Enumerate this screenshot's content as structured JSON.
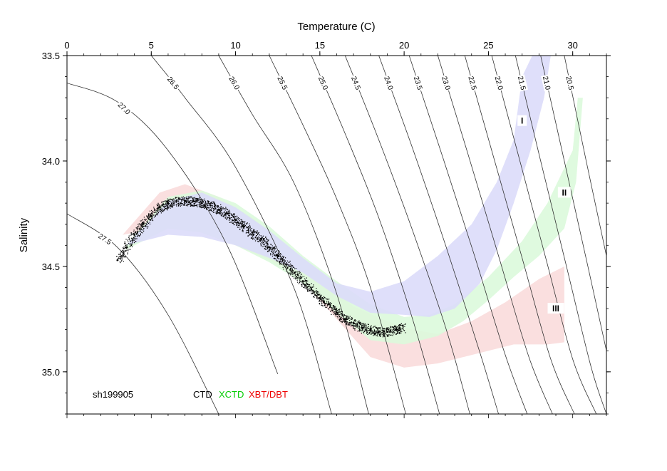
{
  "chart_data": {
    "type": "scatter",
    "xlabel": "Temperature (C)",
    "ylabel": "Salinity",
    "xlim": [
      0,
      32
    ],
    "ylim": [
      33.5,
      35.2
    ],
    "y_inverted": true,
    "x_axis_position": "top",
    "x_ticks": [
      0,
      5,
      10,
      15,
      20,
      25,
      30
    ],
    "y_ticks": [
      33.5,
      34.0,
      34.5,
      35.0
    ],
    "y_tick_labels": [
      "33.5",
      "34.0",
      "34.5",
      "35.0"
    ],
    "grid": false,
    "cruise_id": "sh199905",
    "legend": [
      {
        "label": "CTD",
        "color": "#000000"
      },
      {
        "label": "XCTD",
        "color": "#00cc00"
      },
      {
        "label": "XBT/DBT",
        "color": "#ee0000"
      }
    ],
    "legend_position": "bottom-left",
    "isopycnals": [
      {
        "label": "27.5",
        "T": [
          0,
          3,
          6,
          9
        ],
        "S": [
          34.25,
          34.41,
          34.73,
          35.2
        ]
      },
      {
        "label": "27.0",
        "T": [
          0,
          3,
          6,
          9.5,
          12.5
        ],
        "S": [
          33.63,
          33.72,
          33.95,
          34.4,
          35.01
        ]
      },
      {
        "label": "26.5",
        "T": [
          5,
          7,
          10,
          13.5,
          15.7
        ],
        "S": [
          33.5,
          33.7,
          34.03,
          34.61,
          35.2
        ]
      },
      {
        "label": "26.0",
        "T": [
          9,
          11,
          13.5,
          16,
          17.9
        ],
        "S": [
          33.5,
          33.78,
          34.11,
          34.63,
          35.2
        ]
      },
      {
        "label": "25.5",
        "T": [
          12,
          14,
          16,
          18,
          20.1
        ],
        "S": [
          33.5,
          33.83,
          34.18,
          34.6,
          35.2
        ]
      },
      {
        "label": "25.0",
        "T": [
          14.5,
          16.5,
          18.5,
          20.5,
          22.1
        ],
        "S": [
          33.5,
          33.87,
          34.27,
          34.75,
          35.2
        ]
      },
      {
        "label": "24.5",
        "T": [
          16.5,
          18.5,
          20.5,
          22.5,
          23.9
        ],
        "S": [
          33.5,
          33.9,
          34.33,
          34.8,
          35.2
        ]
      },
      {
        "label": "24.0",
        "T": [
          18.5,
          20.5,
          22.5,
          24.5,
          25.6
        ],
        "S": [
          33.5,
          33.94,
          34.41,
          34.91,
          35.2
        ]
      },
      {
        "label": "23.5",
        "T": [
          20.3,
          22.2,
          24.1,
          26,
          27.3
        ],
        "S": [
          33.5,
          33.96,
          34.43,
          34.92,
          35.2
        ]
      },
      {
        "label": "23.0",
        "T": [
          22,
          23.8,
          25.6,
          27.4,
          28.8
        ],
        "S": [
          33.5,
          33.97,
          34.45,
          34.93,
          35.2
        ]
      },
      {
        "label": "22.5",
        "T": [
          23.6,
          25.3,
          27,
          28.7,
          30.1
        ],
        "S": [
          33.5,
          33.98,
          34.46,
          34.94,
          35.2
        ]
      },
      {
        "label": "22.0",
        "T": [
          25.2,
          26.8,
          28.4,
          30,
          31.4
        ],
        "S": [
          33.5,
          33.98,
          34.46,
          34.94,
          35.2
        ]
      },
      {
        "label": "21.5",
        "T": [
          26.6,
          28.1,
          29.6,
          31.1,
          32
        ],
        "S": [
          33.5,
          34.0,
          34.49,
          34.98,
          35.2
        ]
      },
      {
        "label": "21.0",
        "T": [
          28.1,
          29.5,
          30.9,
          32
        ],
        "S": [
          33.5,
          34.0,
          34.5,
          34.9
        ]
      },
      {
        "label": "20.5",
        "T": [
          29.5,
          30.8,
          32
        ],
        "S": [
          33.5,
          34.0,
          34.45
        ]
      }
    ],
    "regions": [
      {
        "label": "I",
        "color": "#dcdcfa",
        "label_T": 27,
        "label_S": 33.81,
        "upper_T": [
          3.5,
          6,
          8,
          10,
          12,
          14,
          16,
          18,
          20,
          22,
          24,
          25.5,
          26.5,
          27,
          27.6,
          28.3
        ],
        "upper_S": [
          34.4,
          34.19,
          34.15,
          34.22,
          34.33,
          34.46,
          34.58,
          34.62,
          34.57,
          34.45,
          34.3,
          34.1,
          33.9,
          33.6,
          33.5,
          33.5
        ],
        "lower_T": [
          28.7,
          28.3,
          27.5,
          26.5,
          25.5,
          24.5,
          23,
          21.5,
          20,
          18,
          16,
          14,
          12,
          10,
          8,
          6,
          3.5
        ],
        "lower_S": [
          33.5,
          33.7,
          33.95,
          34.2,
          34.42,
          34.58,
          34.7,
          34.74,
          34.73,
          34.72,
          34.64,
          34.53,
          34.46,
          34.4,
          34.36,
          34.35,
          34.4
        ]
      },
      {
        "label": "II",
        "color": "#dcfadc",
        "label_T": 29.5,
        "label_S": 34.15,
        "upper_T": [
          3.5,
          6,
          8,
          10,
          12,
          14,
          16,
          18,
          20,
          21.5,
          23,
          25,
          27,
          28.5,
          30,
          30.3
        ],
        "upper_S": [
          34.4,
          34.17,
          34.14,
          34.2,
          34.31,
          34.45,
          34.57,
          34.68,
          34.74,
          34.73,
          34.68,
          34.55,
          34.38,
          34.2,
          33.95,
          33.7
        ],
        "lower_T": [
          30.6,
          30.2,
          29.5,
          28,
          26.5,
          25,
          23.5,
          22,
          20,
          18,
          16,
          14,
          12,
          10,
          8,
          6,
          3.5
        ],
        "lower_S": [
          33.7,
          34.1,
          34.32,
          34.45,
          34.55,
          34.66,
          34.76,
          34.83,
          34.87,
          34.85,
          34.72,
          34.58,
          34.48,
          34.4,
          34.34,
          34.32,
          34.42
        ]
      },
      {
        "label": "III",
        "color": "#fadcdc",
        "label_T": 29,
        "label_S": 34.7,
        "upper_T": [
          3.3,
          5.5,
          7,
          9,
          11,
          13,
          15,
          17,
          19,
          20.5,
          22,
          24,
          26,
          28,
          29.5
        ],
        "upper_S": [
          34.35,
          34.15,
          34.11,
          34.17,
          34.27,
          34.41,
          34.56,
          34.69,
          34.76,
          34.8,
          34.82,
          34.76,
          34.67,
          34.56,
          34.5
        ],
        "lower_T": [
          29.5,
          28.5,
          26.5,
          24.5,
          22,
          20,
          18,
          16,
          14,
          12,
          10,
          8,
          6,
          3.3
        ],
        "lower_S": [
          34.86,
          34.87,
          34.87,
          34.91,
          34.96,
          34.98,
          34.93,
          34.75,
          34.57,
          34.47,
          34.4,
          34.34,
          34.31,
          34.35
        ]
      }
    ],
    "series": [
      {
        "name": "CTD",
        "color": "#000000",
        "T": [
          3,
          3.5,
          4,
          4.5,
          5,
          5.5,
          6,
          6.5,
          7,
          7.5,
          8,
          8.5,
          9,
          9.5,
          10,
          10.5,
          11,
          11.5,
          12,
          12.5,
          13,
          13.5,
          14,
          14.5,
          15,
          15.5,
          16,
          16.5,
          17,
          17.5,
          18,
          18.5,
          19,
          19.5,
          20
        ],
        "S": [
          34.47,
          34.41,
          34.35,
          34.3,
          34.26,
          34.22,
          34.2,
          34.19,
          34.19,
          34.19,
          34.2,
          34.21,
          34.23,
          34.25,
          34.28,
          34.31,
          34.34,
          34.37,
          34.41,
          34.45,
          34.49,
          34.53,
          34.57,
          34.61,
          34.65,
          34.68,
          34.72,
          34.75,
          34.77,
          34.79,
          34.8,
          34.81,
          34.81,
          34.8,
          34.79
        ]
      }
    ]
  }
}
